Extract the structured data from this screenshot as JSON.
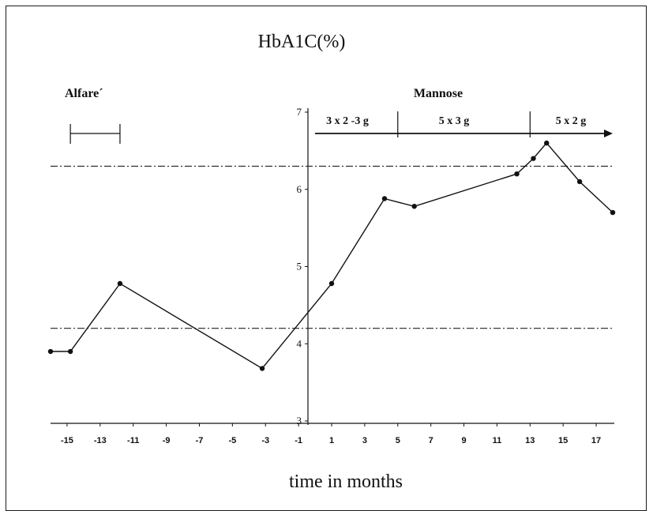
{
  "chart_data": {
    "type": "line",
    "title": "HbA1C(%)",
    "xlabel": "time in months",
    "ylabel": "",
    "xlim": [
      -16,
      18
    ],
    "ylim": [
      3,
      7
    ],
    "xticks": [
      -15,
      -13,
      -11,
      -9,
      -7,
      -5,
      -3,
      -1,
      1,
      3,
      5,
      7,
      9,
      11,
      13,
      15,
      17
    ],
    "xtick_labels": [
      "-15",
      "-13",
      "-11",
      "-9",
      "-7",
      "-5",
      "-3",
      "-1",
      "1",
      "3",
      "5",
      "7",
      "9",
      "11",
      "13",
      "15",
      "17"
    ],
    "yticks": [
      3,
      4,
      5,
      6,
      7
    ],
    "ytick_labels": [
      "3",
      "4",
      "5",
      "6",
      "7"
    ],
    "series": [
      {
        "x": [
          -16,
          -14.8,
          -11.8,
          -3.2,
          1.0,
          4.2,
          6.0,
          12.2,
          13.2,
          14.0,
          16.0,
          18.0
        ],
        "y": [
          3.9,
          3.9,
          4.78,
          3.68,
          4.78,
          5.88,
          5.78,
          6.2,
          6.4,
          6.6,
          6.1,
          5.7
        ]
      }
    ],
    "reference_lines": [
      {
        "y": 6.3,
        "style": "dash-dot"
      },
      {
        "y": 4.2,
        "style": "dash-dot"
      }
    ],
    "annotations": {
      "alfare": {
        "label": "Alfare´",
        "x_start": -14.8,
        "x_end": -11.8
      },
      "mannose": {
        "label": "Mannose",
        "x_start": 0,
        "x_end": 18,
        "dividers": [
          5,
          13
        ],
        "phases": [
          {
            "label": "3 x 2 -3 g",
            "x_from": 0,
            "x_to": 5
          },
          {
            "label": "5 x 3 g",
            "x_from": 5,
            "x_to": 13
          },
          {
            "label": "5 x 2 g",
            "x_from": 13,
            "x_to": 18
          }
        ]
      }
    },
    "grid": false,
    "legend": "none",
    "colors": {
      "line": "#111111",
      "reference": "#222222",
      "axis": "#111111"
    }
  }
}
